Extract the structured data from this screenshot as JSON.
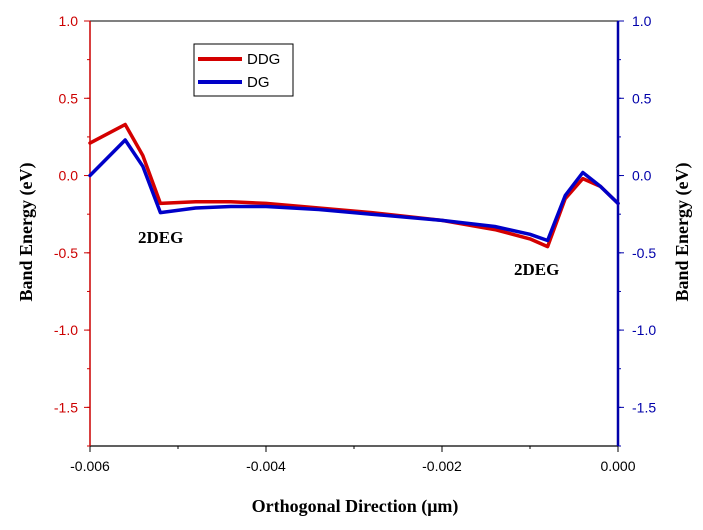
{
  "chart_data": {
    "type": "line",
    "xlabel": "Orthogonal Direction (μm)",
    "ylabel_left": "Band Energy (eV)",
    "ylabel_right": "Band Energy (eV)",
    "xlim": [
      -0.006,
      0.0
    ],
    "ylim": [
      -1.75,
      1.0
    ],
    "x_ticks": [
      "-0.006",
      "-0.004",
      "-0.002",
      "0.000"
    ],
    "y_ticks": [
      "1.0",
      "0.5",
      "0.0",
      "-0.5",
      "-1.0",
      "-1.5"
    ],
    "grid": false,
    "legend_position": "top-left",
    "left_axis_color": "#cc0000",
    "right_axis_color": "#0000aa",
    "annotations": [
      "2DEG",
      "2DEG"
    ],
    "series": [
      {
        "name": "DDG",
        "color": "#d40000",
        "x": [
          -0.006,
          -0.0056,
          -0.0054,
          -0.0052,
          -0.0048,
          -0.0044,
          -0.004,
          -0.0034,
          -0.0028,
          -0.002,
          -0.0014,
          -0.001,
          -0.0008,
          -0.0006,
          -0.0004,
          -0.0002,
          0.0
        ],
        "y": [
          0.21,
          0.33,
          0.13,
          -0.18,
          -0.17,
          -0.17,
          -0.18,
          -0.21,
          -0.24,
          -0.29,
          -0.35,
          -0.41,
          -0.46,
          -0.15,
          -0.02,
          -0.07,
          -0.18
        ]
      },
      {
        "name": "DG",
        "color": "#0000c8",
        "x": [
          -0.006,
          -0.0056,
          -0.0054,
          -0.0052,
          -0.0048,
          -0.0044,
          -0.004,
          -0.0034,
          -0.0028,
          -0.002,
          -0.0014,
          -0.001,
          -0.0008,
          -0.0006,
          -0.0004,
          -0.0002,
          0.0
        ],
        "y": [
          0.0,
          0.23,
          0.06,
          -0.24,
          -0.21,
          -0.2,
          -0.2,
          -0.22,
          -0.25,
          -0.29,
          -0.33,
          -0.38,
          -0.42,
          -0.13,
          0.02,
          -0.07,
          -0.18
        ]
      }
    ]
  }
}
